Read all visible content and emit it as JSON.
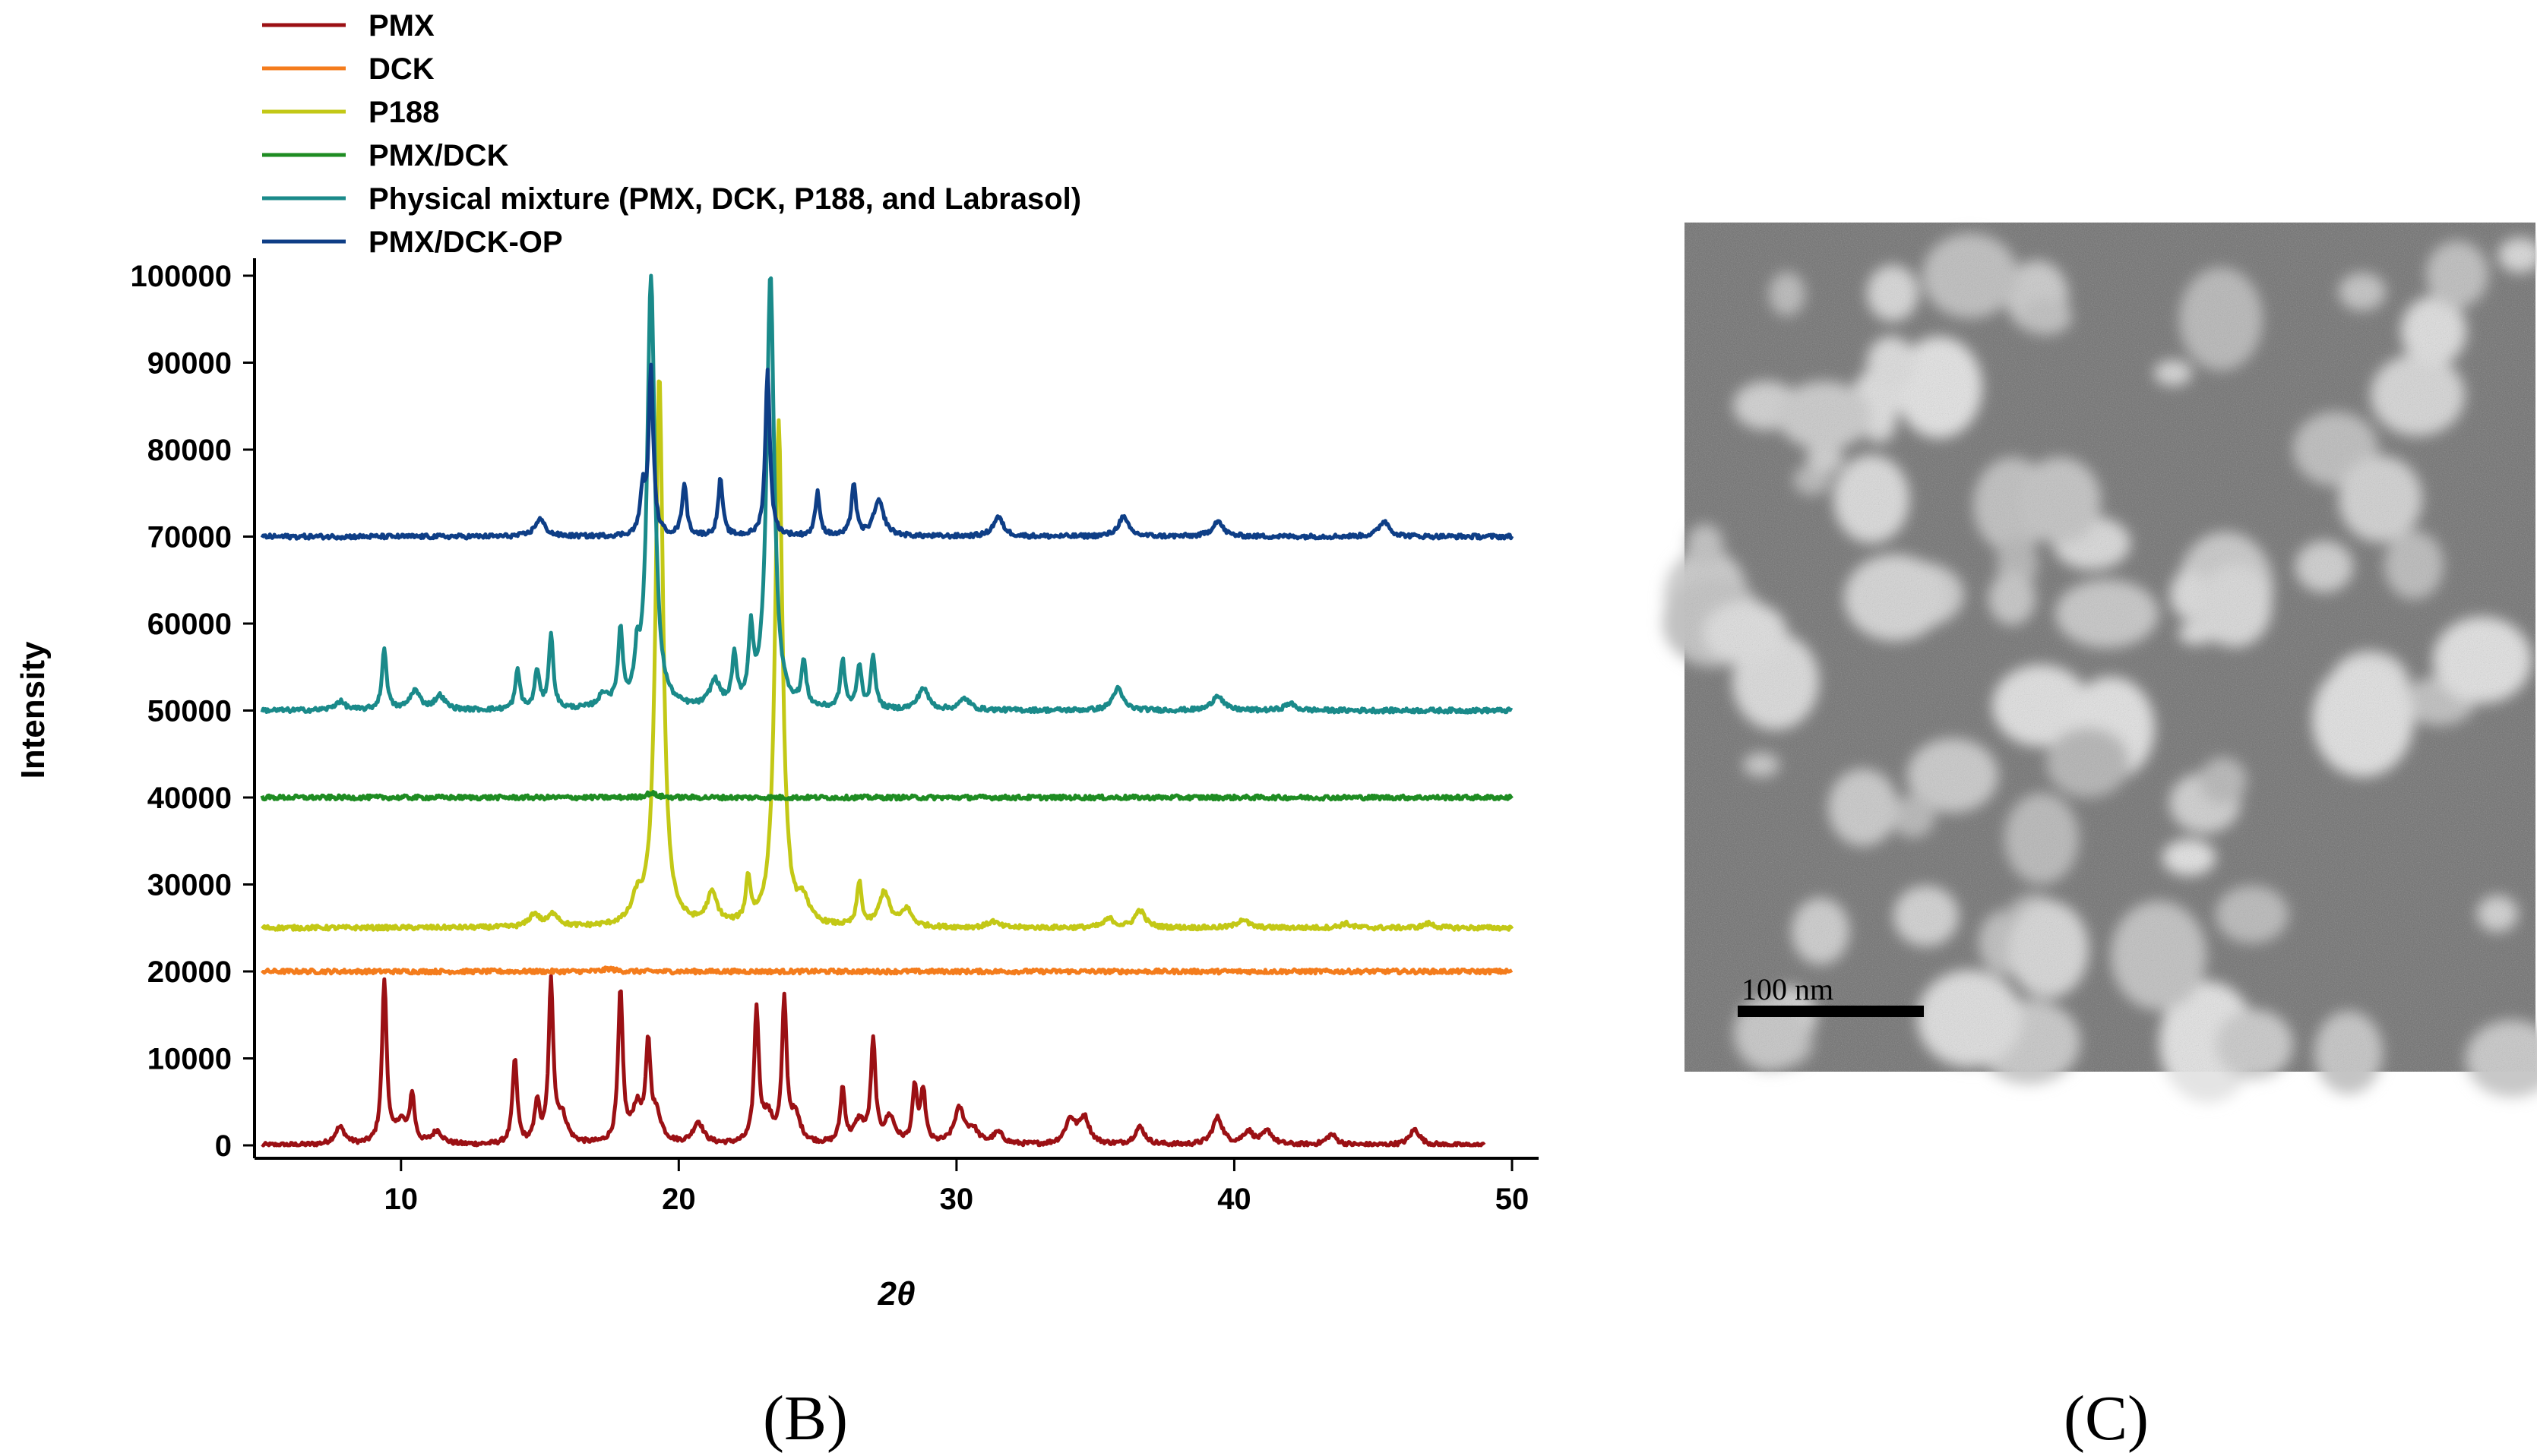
{
  "chart_data": {
    "type": "line",
    "xlabel": "2θ",
    "ylabel": "Intensity",
    "xlim": [
      5,
      50
    ],
    "ylim": [
      0,
      100000
    ],
    "xticks": [
      10,
      20,
      30,
      40,
      50
    ],
    "yticks": [
      0,
      10000,
      20000,
      30000,
      40000,
      50000,
      60000,
      70000,
      80000,
      90000,
      100000
    ],
    "legend_position": "top-left",
    "series": [
      {
        "name": "PMX",
        "color": "#9B1014",
        "baseline": 0,
        "end_x": 49,
        "peaks": [
          [
            7.8,
            2000
          ],
          [
            9.4,
            18800
          ],
          [
            10.0,
            2500
          ],
          [
            10.4,
            5500
          ],
          [
            11.3,
            1500
          ],
          [
            14.1,
            9800
          ],
          [
            14.9,
            4800
          ],
          [
            15.4,
            18300
          ],
          [
            15.8,
            3000
          ],
          [
            17.9,
            17400
          ],
          [
            18.5,
            4000
          ],
          [
            18.9,
            10500
          ],
          [
            19.2,
            3000
          ],
          [
            20.7,
            2500
          ],
          [
            22.8,
            15200
          ],
          [
            23.2,
            3000
          ],
          [
            23.8,
            16000
          ],
          [
            24.2,
            3000
          ],
          [
            25.9,
            6300
          ],
          [
            26.5,
            2500
          ],
          [
            27.0,
            11500
          ],
          [
            27.6,
            3000
          ],
          [
            28.5,
            6400
          ],
          [
            28.8,
            6000
          ],
          [
            30.1,
            4000
          ],
          [
            30.6,
            1500
          ],
          [
            31.5,
            1300
          ],
          [
            34.1,
            2800
          ],
          [
            34.6,
            3000
          ],
          [
            36.6,
            2000
          ],
          [
            39.4,
            3100
          ],
          [
            40.5,
            1500
          ],
          [
            41.2,
            1500
          ],
          [
            43.5,
            1200
          ],
          [
            46.5,
            1800
          ]
        ]
      },
      {
        "name": "DCK",
        "color": "#F47C1C",
        "baseline": 20000,
        "end_x": 50,
        "peaks": [
          [
            17.5,
            300
          ]
        ]
      },
      {
        "name": "P188",
        "color": "#C3C816",
        "baseline": 25000,
        "end_x": 50,
        "peaks": [
          [
            14.8,
            1500
          ],
          [
            15.5,
            1500
          ],
          [
            18.5,
            2500
          ],
          [
            19.3,
            63500
          ],
          [
            21.2,
            3500
          ],
          [
            22.5,
            5000
          ],
          [
            23.6,
            58000
          ],
          [
            24.5,
            2500
          ],
          [
            26.5,
            5000
          ],
          [
            27.4,
            4000
          ],
          [
            28.2,
            2000
          ],
          [
            31.3,
            700
          ],
          [
            35.5,
            1000
          ],
          [
            36.6,
            2000
          ],
          [
            40.3,
            1000
          ],
          [
            44.0,
            500
          ],
          [
            47.0,
            500
          ]
        ]
      },
      {
        "name": "PMX/DCK",
        "color": "#1E8C22",
        "baseline": 40000,
        "end_x": 50,
        "peaks": [
          [
            19.0,
            500
          ]
        ]
      },
      {
        "name": "Physical mixture (PMX, DCK, P188, and Labrasol)",
        "color": "#1A8A8A",
        "baseline": 50000,
        "end_x": 50,
        "peaks": [
          [
            7.8,
            1000
          ],
          [
            9.4,
            7000
          ],
          [
            10.5,
            2200
          ],
          [
            11.4,
            1600
          ],
          [
            14.2,
            4500
          ],
          [
            14.9,
            4500
          ],
          [
            15.4,
            8500
          ],
          [
            17.3,
            1500
          ],
          [
            17.9,
            8500
          ],
          [
            18.5,
            4500
          ],
          [
            19.0,
            50000
          ],
          [
            21.3,
            3000
          ],
          [
            22.0,
            5500
          ],
          [
            22.6,
            8000
          ],
          [
            23.3,
            50000
          ],
          [
            24.5,
            5000
          ],
          [
            25.9,
            5500
          ],
          [
            26.5,
            5000
          ],
          [
            27.0,
            6000
          ],
          [
            28.8,
            2500
          ],
          [
            30.3,
            1300
          ],
          [
            35.8,
            2500
          ],
          [
            39.4,
            1800
          ],
          [
            42.0,
            800
          ]
        ]
      },
      {
        "name": "PMX/DCK-OP",
        "color": "#0E3E86",
        "baseline": 70000,
        "end_x": 50,
        "peaks": [
          [
            15.0,
            2000
          ],
          [
            18.7,
            5000
          ],
          [
            19.0,
            19000
          ],
          [
            20.2,
            6000
          ],
          [
            21.5,
            6500
          ],
          [
            23.2,
            19000
          ],
          [
            25.0,
            5000
          ],
          [
            26.3,
            6000
          ],
          [
            27.2,
            4000
          ],
          [
            31.5,
            2200
          ],
          [
            36.0,
            2200
          ],
          [
            39.4,
            1800
          ],
          [
            45.4,
            1800
          ]
        ]
      }
    ]
  },
  "panels": {
    "chart_label": "(B)",
    "image_label": "(C)"
  },
  "micrograph": {
    "scale_bar_label": "100 nm"
  }
}
